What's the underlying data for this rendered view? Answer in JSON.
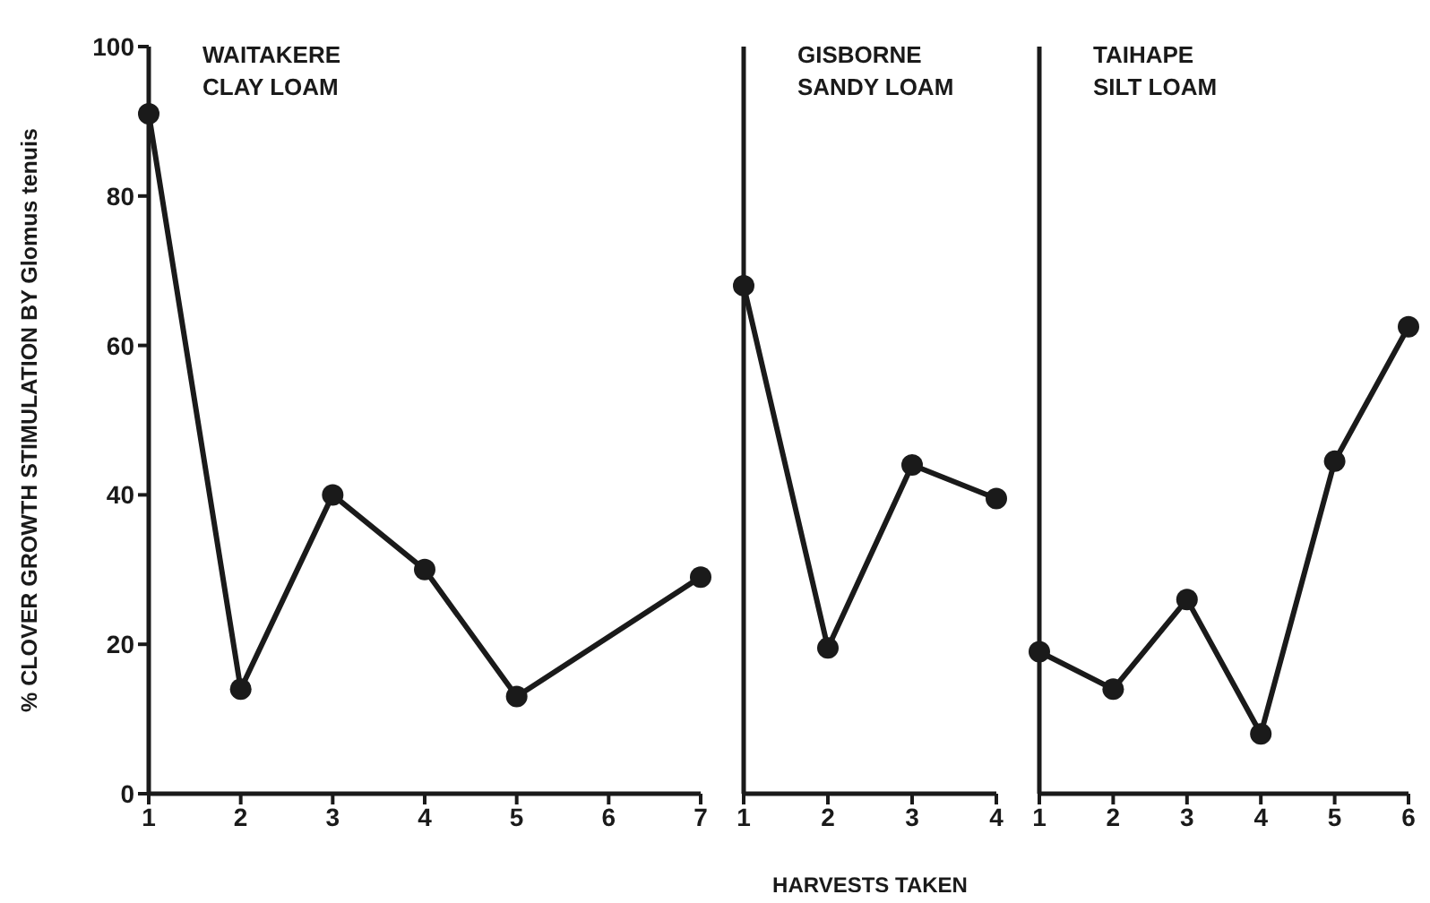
{
  "chart_data": [
    {
      "type": "line",
      "title": "WAITAKERE\nCLAY LOAM",
      "ylabel": "% CLOVER GROWTH STIMULATION BY Glomus tenuis",
      "x": [
        1,
        2,
        3,
        4,
        5,
        7
      ],
      "series": [
        {
          "color": "#1a1a1a",
          "values": [
            91,
            14,
            40,
            30,
            13,
            29
          ]
        }
      ],
      "xlim": [
        1,
        7
      ],
      "xticks": [
        1,
        2,
        3,
        4,
        5,
        6,
        7
      ],
      "ylim": [
        0,
        100
      ],
      "yticks": [
        0,
        20,
        40,
        60,
        80,
        100
      ],
      "grid": false,
      "marker": "circle",
      "line_style": "solid"
    },
    {
      "type": "line",
      "title": "GISBORNE\nSANDY LOAM",
      "xlabel": "HARVESTS TAKEN",
      "x": [
        1,
        2,
        3,
        4
      ],
      "series": [
        {
          "color": "#1a1a1a",
          "values": [
            68,
            19.5,
            44,
            39.5
          ]
        }
      ],
      "xlim": [
        1,
        4
      ],
      "xticks": [
        1,
        2,
        3,
        4
      ],
      "ylim": [
        0,
        100
      ],
      "yticks": [
        0,
        20,
        40,
        60,
        80,
        100
      ],
      "tick_labels": "x",
      "grid": false,
      "marker": "circle",
      "line_style": "solid"
    },
    {
      "type": "line",
      "title": "TAIHAPE\nSILT LOAM",
      "x": [
        1,
        2,
        3,
        4,
        5,
        6
      ],
      "series": [
        {
          "color": "#1a1a1a",
          "values": [
            19,
            14,
            26,
            8,
            44.5,
            62.5
          ]
        }
      ],
      "xlim": [
        1,
        6
      ],
      "xticks": [
        1,
        2,
        3,
        4,
        5,
        6
      ],
      "ylim": [
        0,
        100
      ],
      "yticks": [
        0,
        20,
        40,
        60,
        80,
        100
      ],
      "tick_labels": "x",
      "grid": false,
      "marker": "circle",
      "line_style": "solid"
    }
  ]
}
